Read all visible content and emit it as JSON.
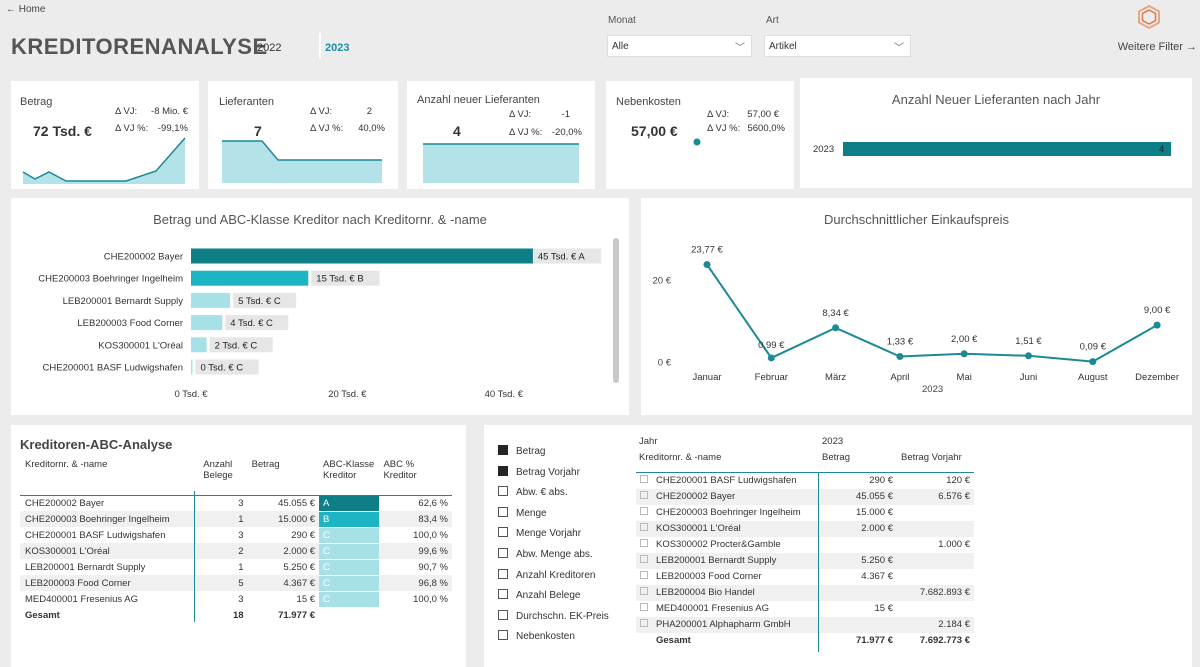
{
  "header": {
    "home_link": "← Home",
    "title": "KREDITORENANALYSE",
    "years": [
      "2022",
      "2023"
    ],
    "month_label": "Monat",
    "month_value": "Alle",
    "art_label": "Art",
    "art_value": "Artikel",
    "more_filters": "Weitere Filter →"
  },
  "kpis": {
    "betrag": {
      "label": "Betrag",
      "value": "72 Tsd. €",
      "vj_label": "Δ VJ:",
      "vj": "-8 Mio. €",
      "vjp_label": "Δ VJ %:",
      "vjp": "-99,1%"
    },
    "lieferanten": {
      "label": "Lieferanten",
      "value": "7",
      "vj_label": "Δ VJ:",
      "vj": "2",
      "vjp_label": "Δ VJ %:",
      "vjp": "40,0%"
    },
    "neue": {
      "label": "Anzahl neuer Lieferanten",
      "value": "4",
      "vj_label": "Δ VJ:",
      "vj": "-1",
      "vjp_label": "Δ VJ %:",
      "vjp": "-20,0%"
    },
    "nebenkosten": {
      "label": "Nebenkosten",
      "value": "57,00 €",
      "vj_label": "Δ VJ:",
      "vj": "57,00 €",
      "vjp_label": "Δ VJ %:",
      "vjp": "5600,0%"
    }
  },
  "new_suppliers_chart": {
    "title": "Anzahl Neuer Lieferanten nach Jahr",
    "category": "2023",
    "value": 4,
    "value_label": "4"
  },
  "colors": {
    "dark_teal": "#0e7f86",
    "teal": "#1db5c3",
    "light_teal": "#a7e1e8",
    "line": "#1b8a95"
  },
  "chart_data": [
    {
      "type": "bar",
      "title": "Betrag und ABC-Klasse Kreditor nach Kreditornr. & -name",
      "categories": [
        "CHE200002 Bayer",
        "CHE200003 Boehringer Ingelheim",
        "LEB200001 Bernardt Supply",
        "LEB200003 Food Corner",
        "KOS300001 L'Oréal",
        "CHE200001 BASF Ludwigshafen"
      ],
      "values": [
        45,
        15,
        5,
        4,
        2,
        0
      ],
      "data_labels": [
        "45 Tsd. € A",
        "15 Tsd. € B",
        "5 Tsd. € C",
        "4 Tsd. € C",
        "2 Tsd. € C",
        "0 Tsd. € C"
      ],
      "classes": [
        "A",
        "B",
        "C",
        "C",
        "C",
        "C"
      ],
      "xlim": [
        0,
        50
      ],
      "xticks": [
        "0 Tsd. €",
        "20 Tsd. €",
        "40 Tsd. €"
      ],
      "xtick_values": [
        0,
        20,
        40
      ]
    },
    {
      "type": "line",
      "title": "Durchschnittlicher Einkaufspreis",
      "categories": [
        "Januar",
        "Februar",
        "März",
        "April",
        "Mai",
        "Juni",
        "August",
        "Dezember"
      ],
      "values": [
        23.77,
        0.99,
        8.34,
        1.33,
        2.0,
        1.51,
        0.09,
        9.0
      ],
      "data_labels": [
        "23,77 €",
        "0,99 €",
        "8,34 €",
        "1,33 €",
        "2,00 €",
        "1,51 €",
        "0,09 €",
        "9,00 €"
      ],
      "xlabel": "2023",
      "ylim": [
        0,
        30
      ],
      "yticks": [
        "0 €",
        "20 €"
      ],
      "ytick_values": [
        0,
        20
      ]
    }
  ],
  "abc_table": {
    "title": "Kreditoren-ABC-Analyse",
    "headers": [
      "Kreditornr. & -name",
      "Anzahl Belege",
      "Betrag",
      "ABC-Klasse Kreditor",
      "ABC % Kreditor"
    ],
    "rows": [
      [
        "CHE200002 Bayer",
        "3",
        "45.055 €",
        "A",
        "62,6 %"
      ],
      [
        "CHE200003 Boehringer Ingelheim",
        "1",
        "15.000 €",
        "B",
        "83,4 %"
      ],
      [
        "CHE200001 BASF Ludwigshafen",
        "3",
        "290 €",
        "C",
        "100,0 %"
      ],
      [
        "KOS300001 L'Oréal",
        "2",
        "2.000 €",
        "C",
        "99,6 %"
      ],
      [
        "LEB200001 Bernardt Supply",
        "1",
        "5.250 €",
        "C",
        "90,7 %"
      ],
      [
        "LEB200003 Food Corner",
        "5",
        "4.367 €",
        "C",
        "96,8 %"
      ],
      [
        "MED400001 Fresenius AG",
        "3",
        "15 €",
        "C",
        "100,0 %"
      ]
    ],
    "total": [
      "Gesamt",
      "18",
      "71.977 €"
    ]
  },
  "measures": [
    {
      "label": "Betrag",
      "checked": true
    },
    {
      "label": "Betrag Vorjahr",
      "checked": true
    },
    {
      "label": "Abw. € abs.",
      "checked": false
    },
    {
      "label": "Menge",
      "checked": false
    },
    {
      "label": "Menge Vorjahr",
      "checked": false
    },
    {
      "label": "Abw. Menge abs.",
      "checked": false
    },
    {
      "label": "Anzahl Kreditoren",
      "checked": false
    },
    {
      "label": "Anzahl Belege",
      "checked": false
    },
    {
      "label": "Durchschn. EK-Preis",
      "checked": false
    },
    {
      "label": "Nebenkosten",
      "checked": false
    }
  ],
  "pivot": {
    "header_jahr": "Jahr",
    "header_year": "2023",
    "header_name": "Kreditornr. & -name",
    "header_betrag": "Betrag",
    "header_vorjahr": "Betrag Vorjahr",
    "rows": [
      [
        "CHE200001 BASF Ludwigshafen",
        "290 €",
        "120 €"
      ],
      [
        "CHE200002 Bayer",
        "45.055 €",
        "6.576 €"
      ],
      [
        "CHE200003 Boehringer Ingelheim",
        "15.000 €",
        ""
      ],
      [
        "KOS300001 L'Oréal",
        "2.000 €",
        ""
      ],
      [
        "KOS300002 Procter&Gamble",
        "",
        "1.000 €"
      ],
      [
        "LEB200001 Bernardt Supply",
        "5.250 €",
        ""
      ],
      [
        "LEB200003 Food Corner",
        "4.367 €",
        ""
      ],
      [
        "LEB200004 Bio Handel",
        "",
        "7.682.893 €"
      ],
      [
        "MED400001 Fresenius AG",
        "15 €",
        ""
      ],
      [
        "PHA200001 Alphapharm GmbH",
        "",
        "2.184 €"
      ]
    ],
    "total": [
      "Gesamt",
      "71.977 €",
      "7.692.773 €"
    ]
  }
}
